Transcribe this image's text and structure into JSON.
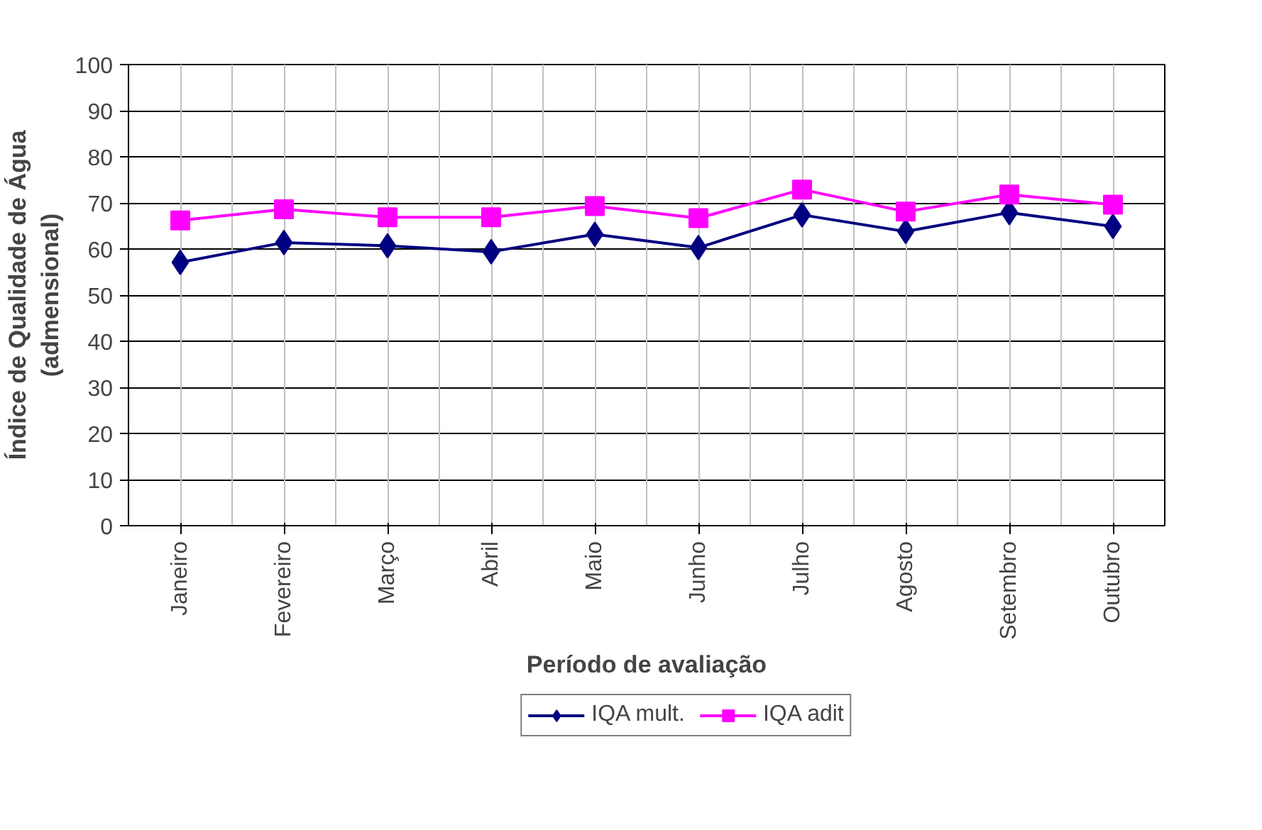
{
  "chart_data": {
    "type": "line",
    "xlabel": "Período de avaliação",
    "ylabel": "Índice de Qualidade de Água\n(admensional)",
    "categories": [
      "Janeiro",
      "Fevereiro",
      "Março",
      "Abril",
      "Maio",
      "Junho",
      "Julho",
      "Agosto",
      "Setembro",
      "Outubro"
    ],
    "series": [
      {
        "name": "IQA mult.",
        "color": "#000080",
        "marker": "diamond",
        "values": [
          57.1,
          61.4,
          60.7,
          59.4,
          63.2,
          60.3,
          67.4,
          63.8,
          67.9,
          64.9
        ]
      },
      {
        "name": "IQA adit",
        "color": "#ff00ff",
        "marker": "square",
        "values": [
          66.2,
          68.6,
          66.9,
          66.9,
          69.3,
          66.7,
          72.9,
          68.1,
          71.8,
          69.6
        ]
      }
    ],
    "ylim": [
      0,
      100
    ],
    "yticks": [
      0,
      10,
      20,
      30,
      40,
      50,
      60,
      70,
      80,
      90,
      100
    ],
    "grid": true,
    "legend": "bottom",
    "line_style": "solid"
  }
}
